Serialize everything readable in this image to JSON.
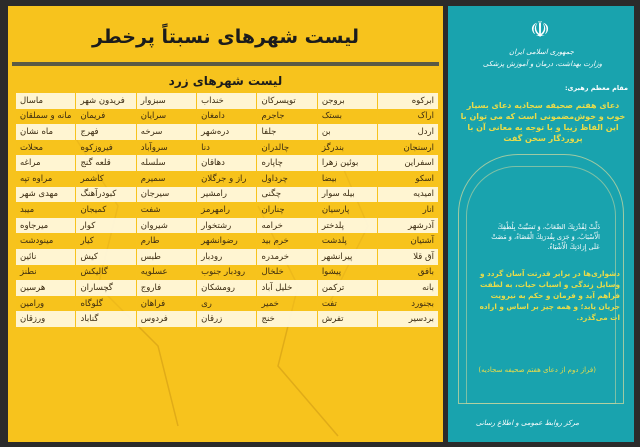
{
  "title": "لیست شهرهای نسبتاً پرخطر",
  "subtitle": "لیست شهرهای زرد",
  "colors": {
    "yellow": "#f7c31d",
    "cream": "#fff8dc",
    "teal": "#19a3ae",
    "gold_text": "#e9dc4a"
  },
  "cities": [
    [
      "ابرکوه",
      "بروجن",
      "تویسرکان",
      "خنداب",
      "سبزوار",
      "فریدون شهر",
      "ماسال"
    ],
    [
      "اراک",
      "بستک",
      "جاجرم",
      "دامغان",
      "سرایان",
      "فریمان",
      "مانه و سملقان"
    ],
    [
      "اردل",
      "بن",
      "جلفا",
      "دره‌شهر",
      "سرخه",
      "فهرج",
      "ماه نشان"
    ],
    [
      "ارسنجان",
      "بندرگز",
      "چالدران",
      "دنا",
      "سروآباد",
      "فیروزکوه",
      "محلات"
    ],
    [
      "اسفراین",
      "بوئین زهرا",
      "چاپاره",
      "دهاقان",
      "سلسله",
      "قلعه گنج",
      "مراغه"
    ],
    [
      "اسکو",
      "بیضا",
      "چرداول",
      "راز و جرگلان",
      "سمیرم",
      "کاشمر",
      "مراوه تپه"
    ],
    [
      "امیدیه",
      "بیله سوار",
      "چگنی",
      "رامشیر",
      "سیرجان",
      "کبودرآهنگ",
      "مهدی شهر"
    ],
    [
      "انار",
      "پارسیان",
      "چناران",
      "رامهرمز",
      "شفت",
      "کمیجان",
      "میبد"
    ],
    [
      "آذرشهر",
      "پلدختر",
      "خرامه",
      "رشتخوار",
      "شیروان",
      "کوار",
      "میرجاوه"
    ],
    [
      "آشتیان",
      "پلدشت",
      "خرم بید",
      "رضوانشهر",
      "طارم",
      "کیار",
      "مینودشت"
    ],
    [
      "آق قلا",
      "پیرانشهر",
      "خرمدره",
      "رودبار",
      "طبس",
      "کیش",
      "نائین"
    ],
    [
      "بافق",
      "پیشوا",
      "خلخال",
      "رودبار جنوب",
      "عسلویه",
      "گالیکش",
      "نطنز"
    ],
    [
      "بانه",
      "ترکمن",
      "خلیل آباد",
      "رومشکان",
      "فاروج",
      "گچساران",
      "هرسین"
    ],
    [
      "بجنورد",
      "تفت",
      "خمیر",
      "ری",
      "فراهان",
      "گلوگاه",
      "ورامین"
    ],
    [
      "بردسیر",
      "تفرش",
      "خنج",
      "زرقان",
      "فردوس",
      "گناباد",
      "ورزقان"
    ]
  ],
  "side": {
    "emblem_icon": "iran-emblem-icon",
    "gov_line1": "جمهوری اسلامی ایران",
    "gov_line2": "وزارت بهداشت، درمان و آموزش پزشکی",
    "leader_label": "مقام معظم رهبری:",
    "quote": "دعای هفتم صحیفه سجادیه دعای بسیار خوب و خوش‌مضمونی است که می توان با این الفاظ زیبا و با توجه به معانی آن با پروردگار سخن گفت",
    "arabic": "ذَلَّتْ لِقُدْرَتِكَ الصِّعَابُ، وَ تَسَبَّبَتْ بِلُطْفِكَ الْأَسْبَابُ، وَ جَرَى بِقُدرَتِكَ الْقَضَاءُ، وَ مَضَتْ عَلَى إِرَادَتِكَ الْأَشْيَاءُ.",
    "persian": "دشواری‌ها در برابر قدرتت آسان گردد و وسایل زندگی و اسباب حیات، به لطفت فراهم آید و فرمان و حکم به نیرویت جریان یابد؛ و همه چیز بر اساس و اراده ات می‌گذرد.",
    "source": "(فراز دوم از دعای هفتم صحیفه سجادیه)",
    "footer": "مرکز روابط عمومی و اطلاع رسانی"
  }
}
